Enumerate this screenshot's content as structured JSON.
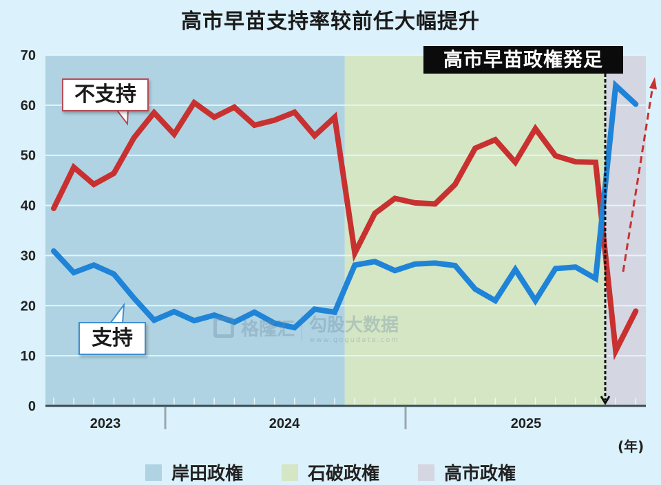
{
  "title": "高市早苗支持率较前任大幅提升",
  "banner": "高市早苗政権発足",
  "callouts": {
    "disapprove": "不支持",
    "approve": "支持"
  },
  "x_unit": "(年)",
  "legend": [
    {
      "label": "岸田政権",
      "color": "#afd3e2"
    },
    {
      "label": "石破政権",
      "color": "#d4e6c4"
    },
    {
      "label": "高市政権",
      "color": "#d4d6e2"
    }
  ],
  "watermark": {
    "brand1": "格隆汇",
    "brand2": "勾股大数据",
    "url": "www.gogudata.com"
  },
  "colors": {
    "approve": "#1f84d8",
    "disapprove": "#c8312f",
    "grid": "#e6f4fb",
    "axis": "#3a4a50"
  },
  "chart_data": {
    "type": "line",
    "title": "高市早苗支持率较前任大幅提升",
    "xlabel": "(年)",
    "ylabel": "",
    "ylim": [
      0,
      70
    ],
    "yticks": [
      0,
      10,
      20,
      30,
      40,
      50,
      60,
      70
    ],
    "grid": true,
    "x_year_labels": [
      "2023",
      "2024",
      "2025"
    ],
    "x": [
      1,
      2,
      3,
      4,
      5,
      6,
      7,
      8,
      9,
      10,
      11,
      12,
      13,
      14,
      15,
      16,
      17,
      18,
      19,
      20,
      21,
      22,
      23,
      24,
      25,
      26,
      27,
      28,
      29,
      30
    ],
    "series": [
      {
        "name": "不支持",
        "color": "#c8312f",
        "values": [
          39.4,
          47.6,
          44.2,
          46.4,
          53.5,
          58.5,
          54.2,
          60.5,
          57.6,
          59.6,
          56.0,
          57.0,
          58.6,
          53.9,
          57.6,
          30.5,
          38.4,
          41.4,
          40.5,
          40.3,
          44.2,
          51.4,
          53.1,
          48.6,
          55.3,
          49.9,
          48.7,
          48.6,
          11.0,
          18.9
        ]
      },
      {
        "name": "支持",
        "color": "#1f84d8",
        "values": [
          30.9,
          26.6,
          28.1,
          26.3,
          21.5,
          17.1,
          18.8,
          17.0,
          18.1,
          16.7,
          18.7,
          16.5,
          15.6,
          19.3,
          18.7,
          28.1,
          28.8,
          27.0,
          28.3,
          28.5,
          28.0,
          23.3,
          21.0,
          27.2,
          21.0,
          27.4,
          27.7,
          25.4,
          63.9,
          60.2
        ]
      }
    ],
    "regions": [
      {
        "name": "岸田政権",
        "from_index": 0,
        "to_index": 14.5
      },
      {
        "name": "石破政権",
        "from_index": 14.5,
        "to_index": 27.5
      },
      {
        "name": "高市政権",
        "from_index": 27.5,
        "to_index": 29.5
      }
    ],
    "annotations": [
      {
        "text": "高市早苗政権発足",
        "type": "dashed-vertical-arrow",
        "at_index": 27.5
      },
      {
        "text": "",
        "type": "dashed-trend-arrow-up",
        "color": "#c8312f"
      }
    ],
    "legend_position": "bottom"
  }
}
